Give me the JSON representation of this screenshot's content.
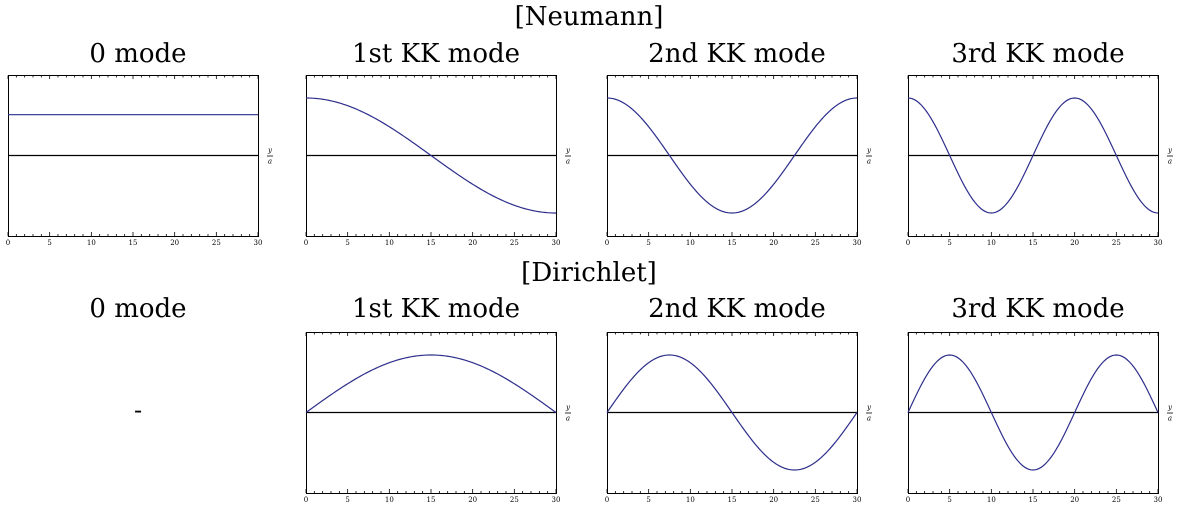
{
  "sections": [
    {
      "title": "[Neumann]",
      "modes": [
        {
          "title": "0 mode",
          "placeholder": "",
          "has_plot": true,
          "n": 0,
          "func": "const"
        },
        {
          "title": "1st KK mode",
          "placeholder": "",
          "has_plot": true,
          "n": 1,
          "func": "cos"
        },
        {
          "title": "2nd KK mode",
          "placeholder": "",
          "has_plot": true,
          "n": 2,
          "func": "cos"
        },
        {
          "title": "3rd KK mode",
          "placeholder": "",
          "has_plot": true,
          "n": 3,
          "func": "cos"
        }
      ]
    },
    {
      "title": "[Dirichlet]",
      "modes": [
        {
          "title": "0 mode",
          "placeholder": "-",
          "has_plot": false,
          "n": 0,
          "func": "none"
        },
        {
          "title": "1st KK mode",
          "placeholder": "",
          "has_plot": true,
          "n": 1,
          "func": "sin"
        },
        {
          "title": "2nd KK mode",
          "placeholder": "",
          "has_plot": true,
          "n": 2,
          "func": "sin"
        },
        {
          "title": "3rd KK mode",
          "placeholder": "",
          "has_plot": true,
          "n": 3,
          "func": "sin"
        }
      ]
    }
  ],
  "chart_data": [
    {
      "type": "line",
      "title": "0 mode",
      "xlabel_num": "y",
      "xlabel_den": "a",
      "xlim": [
        0,
        30
      ],
      "ylim": [
        -1.4,
        1.4
      ],
      "x_ticks": [
        0,
        5,
        10,
        15,
        20,
        25,
        30
      ],
      "series": [
        {
          "values_x": [
            0,
            30
          ],
          "values_y": [
            0.71,
            0.71
          ]
        }
      ]
    },
    {
      "type": "line",
      "title": "1st KK mode",
      "xlabel_num": "y",
      "xlabel_den": "a",
      "xlim": [
        0,
        30
      ],
      "ylim": [
        -1.4,
        1.4
      ],
      "x_ticks": [
        0,
        5,
        10,
        15,
        20,
        25,
        30
      ],
      "series": [
        {
          "values_x": [
            0,
            5,
            10,
            15,
            20,
            25,
            30
          ],
          "values_y": [
            1.0,
            0.87,
            0.5,
            0.0,
            -0.5,
            -0.87,
            -1.0
          ]
        }
      ]
    },
    {
      "type": "line",
      "title": "2nd KK mode",
      "xlabel_num": "y",
      "xlabel_den": "a",
      "xlim": [
        0,
        30
      ],
      "ylim": [
        -1.4,
        1.4
      ],
      "x_ticks": [
        0,
        5,
        10,
        15,
        20,
        25,
        30
      ],
      "series": [
        {
          "values_x": [
            0,
            7.5,
            15,
            22.5,
            30
          ],
          "values_y": [
            1.0,
            0.0,
            -1.0,
            0.0,
            1.0
          ]
        }
      ]
    },
    {
      "type": "line",
      "title": "3rd KK mode",
      "xlabel_num": "y",
      "xlabel_den": "a",
      "xlim": [
        0,
        30
      ],
      "ylim": [
        -1.4,
        1.4
      ],
      "x_ticks": [
        0,
        5,
        10,
        15,
        20,
        25,
        30
      ],
      "series": [
        {
          "values_x": [
            0,
            5,
            10,
            15,
            20,
            25,
            30
          ],
          "values_y": [
            1.0,
            0.0,
            -1.0,
            0.0,
            1.0,
            0.0,
            -1.0
          ]
        }
      ]
    },
    {
      "type": "line",
      "title": "1st KK mode",
      "xlabel_num": "y",
      "xlabel_den": "a",
      "xlim": [
        0,
        30
      ],
      "ylim": [
        -1.4,
        1.4
      ],
      "x_ticks": [
        0,
        5,
        10,
        15,
        20,
        25,
        30
      ],
      "series": [
        {
          "values_x": [
            0,
            15,
            30
          ],
          "values_y": [
            0.0,
            1.0,
            0.0
          ]
        }
      ]
    },
    {
      "type": "line",
      "title": "2nd KK mode",
      "xlabel_num": "y",
      "xlabel_den": "a",
      "xlim": [
        0,
        30
      ],
      "ylim": [
        -1.4,
        1.4
      ],
      "x_ticks": [
        0,
        5,
        10,
        15,
        20,
        25,
        30
      ],
      "series": [
        {
          "values_x": [
            0,
            7.5,
            15,
            22.5,
            30
          ],
          "values_y": [
            0.0,
            1.0,
            0.0,
            -1.0,
            0.0
          ]
        }
      ]
    },
    {
      "type": "line",
      "title": "3rd KK mode",
      "xlabel_num": "y",
      "xlabel_den": "a",
      "xlim": [
        0,
        30
      ],
      "ylim": [
        -1.4,
        1.4
      ],
      "x_ticks": [
        0,
        5,
        10,
        15,
        20,
        25,
        30
      ],
      "series": [
        {
          "values_x": [
            0,
            5,
            10,
            15,
            20,
            25,
            30
          ],
          "values_y": [
            0.0,
            1.0,
            0.0,
            -1.0,
            0.0,
            1.0,
            0.0
          ]
        }
      ]
    }
  ],
  "colors": {
    "curve": "#2e2e8c",
    "axis": "#000000"
  }
}
